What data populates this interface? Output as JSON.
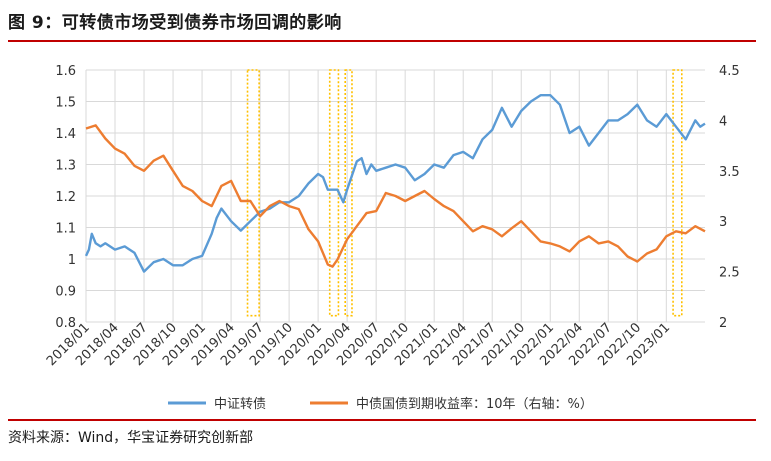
{
  "title": "图 9：可转债市场受到债券市场回调的影响",
  "source": "资料来源：Wind，华宝证券研究创新部",
  "chart_data": {
    "type": "line",
    "title": "",
    "xlabel": "",
    "ylabel": "",
    "y2label": "",
    "ylim": [
      0.8,
      1.6
    ],
    "y2lim": [
      2.0,
      4.5
    ],
    "grid": true,
    "legend_position": "bottom",
    "y_ticks": [
      "0.8",
      "0.9",
      "1",
      "1.1",
      "1.2",
      "1.3",
      "1.4",
      "1.5",
      "1.6"
    ],
    "y2_ticks": [
      "2",
      "2.5",
      "3",
      "3.5",
      "4",
      "4.5"
    ],
    "x_ticks": [
      "2018/01",
      "2018/04",
      "2018/07",
      "2018/10",
      "2019/01",
      "2019/04",
      "2019/07",
      "2019/10",
      "2020/01",
      "2020/04",
      "2020/07",
      "2020/10",
      "2021/01",
      "2021/04",
      "2021/07",
      "2021/10",
      "2022/01",
      "2022/04",
      "2022/07",
      "2022/10",
      "2023/01"
    ],
    "x_range": [
      0,
      64
    ],
    "series": [
      {
        "name": "中证转债",
        "axis": "left",
        "color": "#5b9bd5",
        "x": [
          0,
          0.3,
          0.6,
          1,
          1.5,
          2,
          3,
          4,
          5,
          6,
          7,
          8,
          9,
          10,
          11,
          12,
          13,
          13.5,
          14,
          15,
          16,
          17,
          18,
          19,
          20,
          21,
          22,
          23,
          24,
          24.5,
          25,
          26,
          26.6,
          27,
          28,
          28.5,
          29,
          29.5,
          30,
          31,
          32,
          33,
          34,
          35,
          36,
          37,
          38,
          39,
          40,
          41,
          42,
          43,
          44,
          45,
          46,
          47,
          48,
          49,
          50,
          51,
          52,
          53,
          54,
          55,
          56,
          57,
          58,
          59,
          60,
          61,
          62,
          63,
          63.5,
          64
        ],
        "y": [
          1.01,
          1.03,
          1.08,
          1.05,
          1.04,
          1.05,
          1.03,
          1.04,
          1.02,
          0.96,
          0.99,
          1.0,
          0.98,
          0.98,
          1.0,
          1.01,
          1.08,
          1.13,
          1.16,
          1.12,
          1.09,
          1.12,
          1.15,
          1.16,
          1.18,
          1.18,
          1.2,
          1.24,
          1.27,
          1.26,
          1.22,
          1.22,
          1.18,
          1.22,
          1.31,
          1.32,
          1.27,
          1.3,
          1.28,
          1.29,
          1.3,
          1.29,
          1.25,
          1.27,
          1.3,
          1.29,
          1.33,
          1.34,
          1.32,
          1.38,
          1.41,
          1.48,
          1.42,
          1.47,
          1.5,
          1.52,
          1.52,
          1.49,
          1.4,
          1.42,
          1.36,
          1.4,
          1.44,
          1.44,
          1.46,
          1.49,
          1.44,
          1.42,
          1.46,
          1.42,
          1.38,
          1.44,
          1.42,
          1.43
        ]
      },
      {
        "name": "中债国债到期收益率：10年（右轴：%）",
        "axis": "right",
        "color": "#ed7d31",
        "x": [
          0,
          1,
          2,
          3,
          4,
          5,
          6,
          7,
          8,
          9,
          10,
          11,
          12,
          13,
          14,
          15,
          16,
          17,
          18,
          19,
          20,
          21,
          22,
          23,
          24,
          25,
          25.5,
          26,
          26.5,
          27,
          28,
          29,
          30,
          31,
          32,
          33,
          34,
          35,
          36,
          37,
          38,
          39,
          40,
          41,
          42,
          43,
          44,
          45,
          46,
          47,
          48,
          49,
          50,
          51,
          52,
          53,
          54,
          55,
          56,
          57,
          58,
          59,
          60,
          61,
          62,
          63,
          64
        ],
        "y": [
          3.92,
          3.95,
          3.82,
          3.72,
          3.67,
          3.55,
          3.5,
          3.6,
          3.65,
          3.5,
          3.35,
          3.3,
          3.2,
          3.15,
          3.35,
          3.4,
          3.2,
          3.2,
          3.05,
          3.15,
          3.2,
          3.15,
          3.12,
          2.92,
          2.8,
          2.57,
          2.55,
          2.62,
          2.72,
          2.82,
          2.95,
          3.08,
          3.1,
          3.28,
          3.25,
          3.2,
          3.25,
          3.3,
          3.22,
          3.15,
          3.1,
          3.0,
          2.9,
          2.95,
          2.92,
          2.85,
          2.93,
          3.0,
          2.9,
          2.8,
          2.78,
          2.75,
          2.7,
          2.8,
          2.85,
          2.78,
          2.8,
          2.75,
          2.65,
          2.6,
          2.68,
          2.72,
          2.85,
          2.9,
          2.88,
          2.95,
          2.9
        ]
      }
    ]
  },
  "highlight_windows": [
    {
      "x_start": 16.7,
      "x_end": 17.9,
      "y_start": 1.6,
      "y_end": 0.82
    },
    {
      "x_start": 25.2,
      "x_end": 26.1,
      "y_start": 1.6,
      "y_end": 0.82
    },
    {
      "x_start": 26.8,
      "x_end": 27.5,
      "y_start": 1.6,
      "y_end": 0.82
    },
    {
      "x_start": 60.7,
      "x_end": 61.6,
      "y_start": 1.6,
      "y_end": 0.82
    }
  ]
}
